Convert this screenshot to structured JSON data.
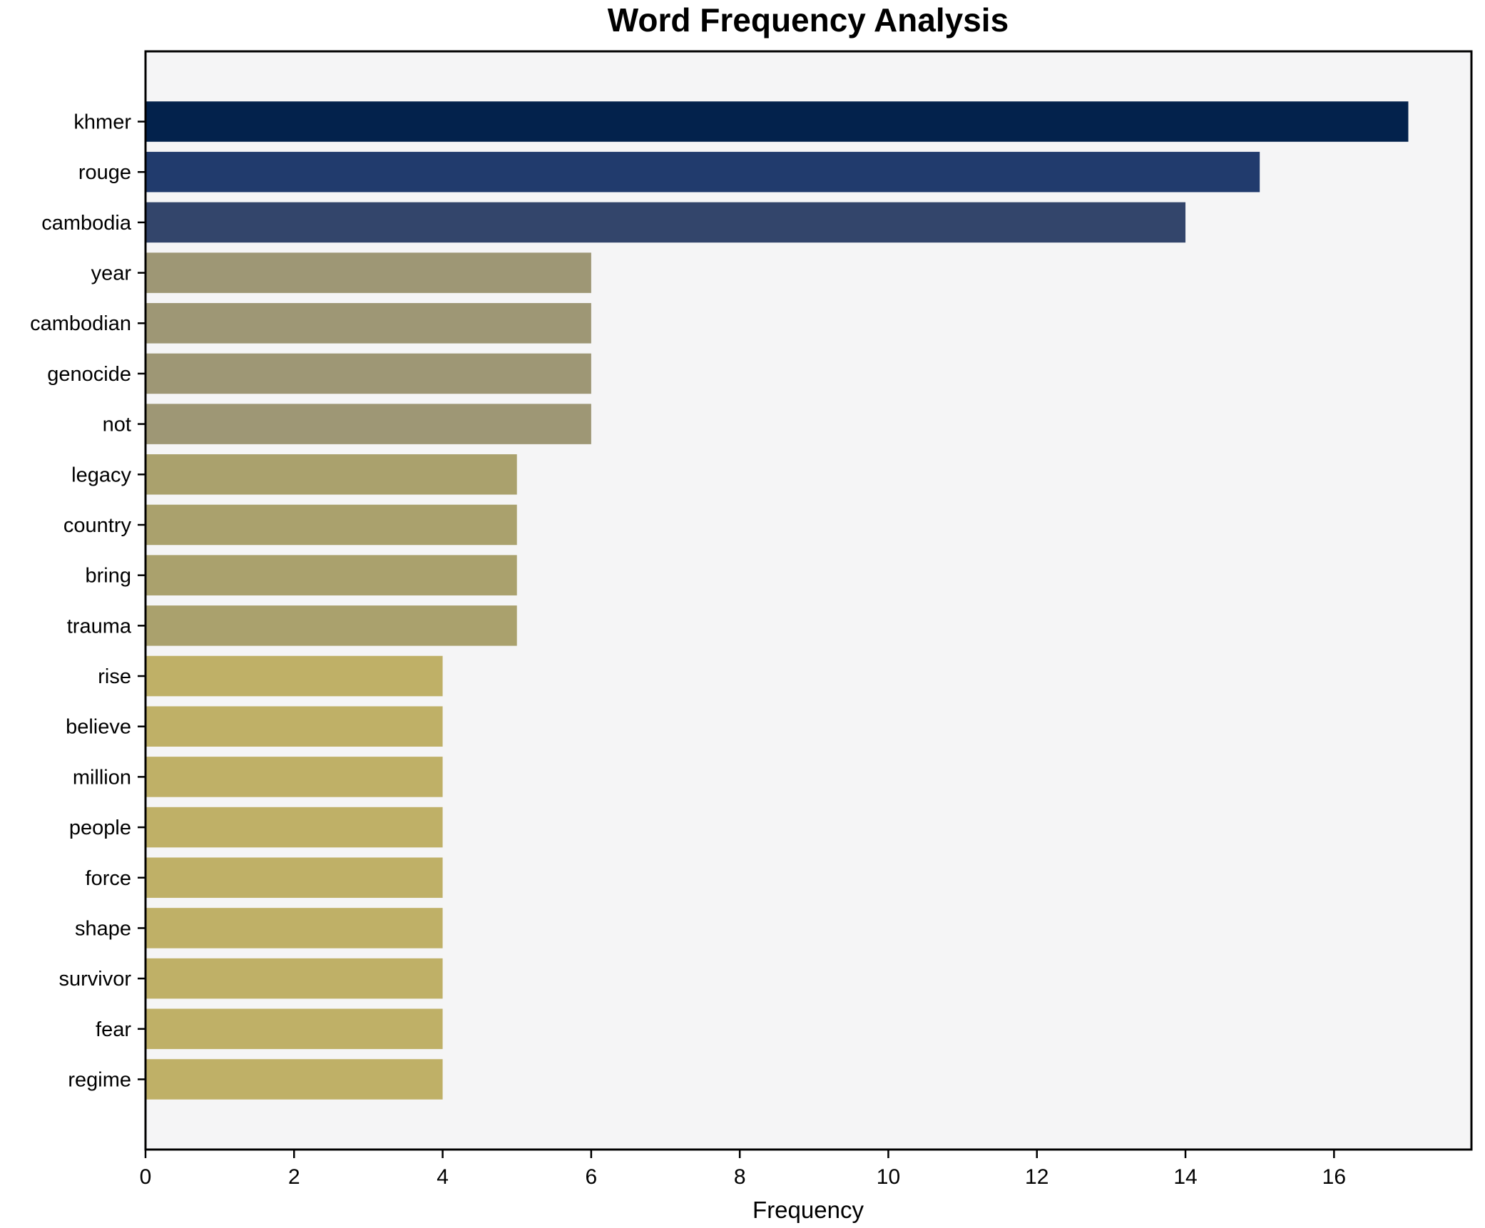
{
  "title": "Word Frequency Analysis",
  "chart_data": {
    "type": "bar",
    "orientation": "horizontal",
    "title": "Word Frequency Analysis",
    "xlabel": "Frequency",
    "ylabel": "",
    "categories": [
      "khmer",
      "rouge",
      "cambodia",
      "year",
      "cambodian",
      "genocide",
      "not",
      "legacy",
      "country",
      "bring",
      "trauma",
      "rise",
      "believe",
      "million",
      "people",
      "force",
      "shape",
      "survivor",
      "fear",
      "regime"
    ],
    "values": [
      17,
      15,
      14,
      6,
      6,
      6,
      6,
      5,
      5,
      5,
      5,
      4,
      4,
      4,
      4,
      4,
      4,
      4,
      4,
      4
    ],
    "bar_colors": [
      "#03224c",
      "#213b6d",
      "#33456b",
      "#9e9775",
      "#9e9775",
      "#9e9775",
      "#9e9775",
      "#aaa16d",
      "#aaa16d",
      "#aaa16d",
      "#aaa16d",
      "#bfb067",
      "#bfb067",
      "#bfb067",
      "#bfb067",
      "#bfb067",
      "#bfb067",
      "#bfb067",
      "#bfb067",
      "#bfb067"
    ],
    "xlim": [
      0,
      17.85
    ],
    "xticks": [
      0,
      2,
      4,
      6,
      8,
      10,
      12,
      14,
      16
    ],
    "grid": false,
    "legend": "none",
    "plot_background": "#f5f5f6",
    "spine_color": "#000000",
    "bar_height_fraction": 0.8
  }
}
